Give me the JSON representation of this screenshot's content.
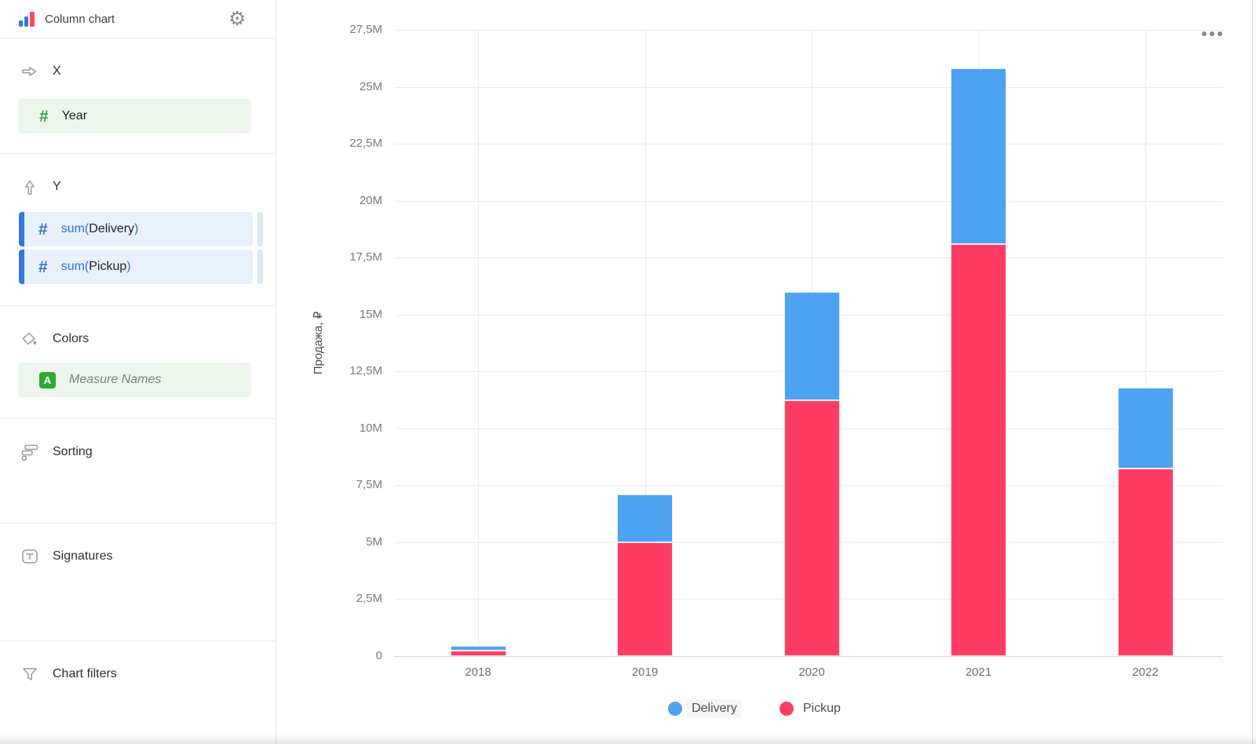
{
  "header": {
    "title": "Column chart"
  },
  "sidebar": {
    "x_section": {
      "label": "X",
      "field": {
        "name": "Year",
        "type_icon": "number-hash-icon"
      }
    },
    "y_section": {
      "label": "Y",
      "fields": [
        {
          "agg_prefix": "sum(",
          "name": "Delivery",
          "close": ")"
        },
        {
          "agg_prefix": "sum(",
          "name": "Pickup",
          "close": ")"
        }
      ]
    },
    "colors_section": {
      "label": "Colors",
      "field": {
        "name": "Measure Names",
        "badge": "A"
      }
    },
    "sorting_section": {
      "label": "Sorting"
    },
    "signatures_section": {
      "label": "Signatures"
    },
    "filters_section": {
      "label": "Chart filters"
    }
  },
  "colors": {
    "delivery_blue": "#4DA2F1",
    "pickup_pink": "#FF3D64",
    "measure_bar_blue": "#3079E3",
    "dimension_green": "#2FA52F",
    "badge_green": "#2FA832"
  },
  "chart_data": {
    "type": "bar",
    "stacked": true,
    "title": "",
    "categories": [
      "2018",
      "2019",
      "2020",
      "2021",
      "2022"
    ],
    "series": [
      {
        "name": "Pickup",
        "color": "#FF3D64",
        "values": [
          0.25,
          5.0,
          11.25,
          18.1,
          8.25
        ]
      },
      {
        "name": "Delivery",
        "color": "#4DA2F1",
        "values": [
          0.2,
          2.1,
          4.75,
          7.7,
          3.55
        ]
      }
    ],
    "stack_order_bottom_to_top": [
      "Pickup",
      "Delivery"
    ],
    "totals": [
      0.45,
      7.1,
      16.0,
      25.8,
      11.8
    ],
    "unit": "millions of rubles",
    "xlabel": "",
    "ylabel": "Продажа, ₽",
    "ylim": [
      0,
      27.5
    ],
    "ytick_step": 2.5,
    "ytick_labels": [
      "0",
      "2,5M",
      "5M",
      "7,5M",
      "10M",
      "12,5M",
      "15M",
      "17,5M",
      "20M",
      "22,5M",
      "25M",
      "27,5M"
    ],
    "grid": true,
    "legend": [
      "Delivery",
      "Pickup"
    ],
    "legend_position": "bottom"
  }
}
